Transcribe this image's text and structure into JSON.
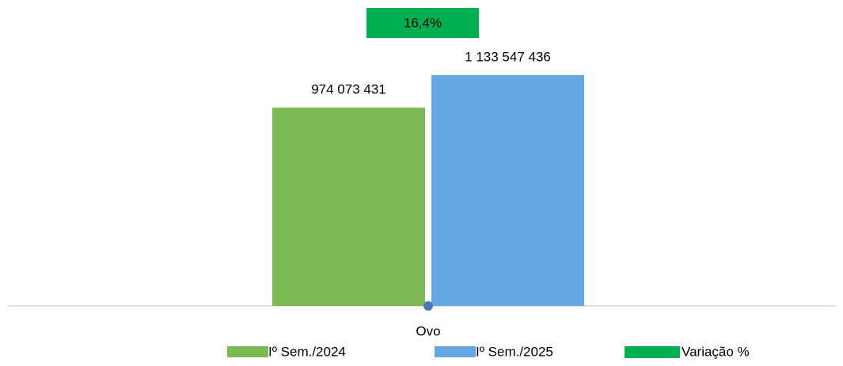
{
  "chart_data": {
    "type": "bar",
    "categories": [
      "Ovo"
    ],
    "series": [
      {
        "name": "Iº Sem./2024",
        "color": "#7db953",
        "values": [
          974073431
        ],
        "value_labels": [
          "974 073 431"
        ]
      },
      {
        "name": "Iº Sem./2025",
        "color": "#65a7e2",
        "values": [
          1133547436
        ],
        "value_labels": [
          "1 133 547 436"
        ]
      },
      {
        "name": "Variação %",
        "color": "#00b050",
        "values": [
          16.4
        ],
        "value_labels": [
          "16,4%"
        ]
      }
    ],
    "ylim": [
      0,
      1400000000
    ],
    "legend": "bottom"
  }
}
